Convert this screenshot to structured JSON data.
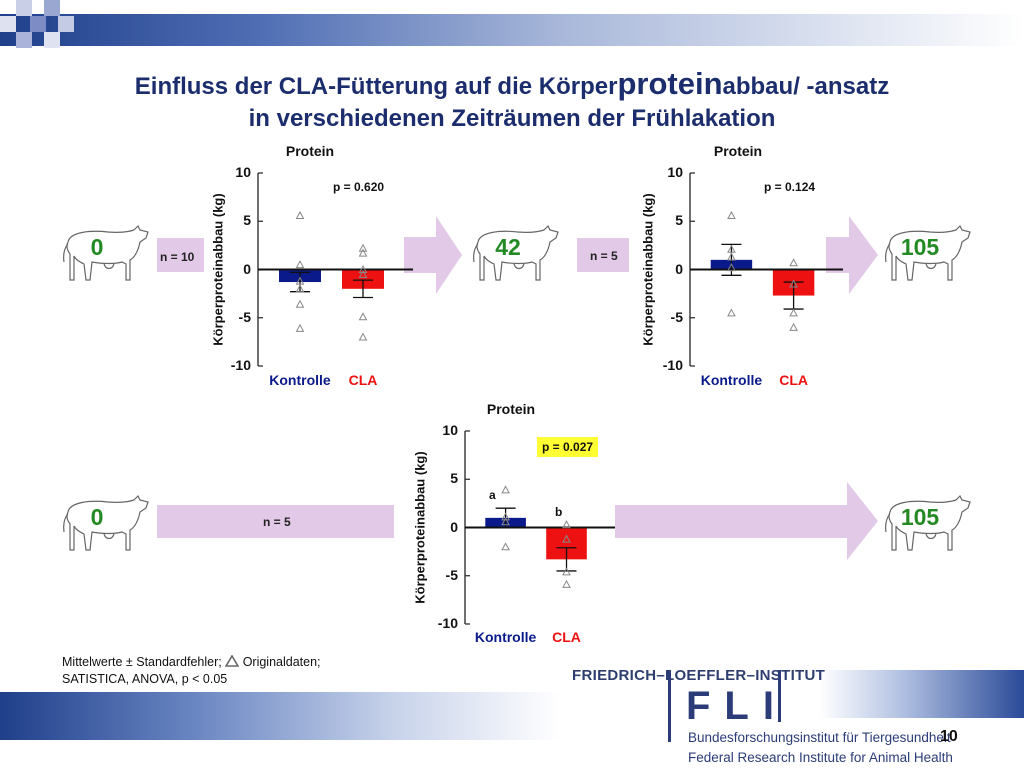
{
  "title": {
    "part1": "Einfluss der CLA-Fütterung auf die Körper",
    "part2": "protein",
    "part3": "abbau/ -ansatz",
    "line2": "in verschiedenen Zeiträumen der Frühlakation"
  },
  "cows": [
    {
      "day": "0"
    },
    {
      "day": "42"
    },
    {
      "day": "105"
    },
    {
      "day": "0"
    },
    {
      "day": "105"
    }
  ],
  "n_labels": [
    "n = 10",
    "n = 5",
    "n = 5"
  ],
  "colors": {
    "kontrolle": "#0a1a8a",
    "cla": "#ee1111",
    "arrow": "#e2c9e7",
    "title": "#1c2d6e",
    "cownum": "#238a23",
    "highlight": "#ffff33"
  },
  "chart_data": [
    {
      "type": "bar",
      "title": "Protein",
      "ylabel": "Körperproteinabbau (kg)",
      "ylim": [
        -10,
        10
      ],
      "yticks": [
        "10",
        "5",
        "0",
        "-5",
        "-10"
      ],
      "categories": [
        "Kontrolle",
        "CLA"
      ],
      "values": [
        -1.3,
        -2.0
      ],
      "errors": [
        1.0,
        0.9
      ],
      "raw_points": [
        [
          5.6,
          0.5,
          -1.2,
          -2.0,
          -3.6,
          -6.1
        ],
        [
          2.2,
          1.7,
          0.0,
          -0.5,
          -4.9,
          -7.0
        ]
      ],
      "pvalue": "p = 0.620",
      "highlight": false,
      "letters": [
        "",
        ""
      ]
    },
    {
      "type": "bar",
      "title": "Protein",
      "ylabel": "Körperproteinabbau (kg)",
      "ylim": [
        -10,
        10
      ],
      "yticks": [
        "10",
        "5",
        "0",
        "-5",
        "-10"
      ],
      "categories": [
        "Kontrolle",
        "CLA"
      ],
      "values": [
        1.0,
        -2.7
      ],
      "errors": [
        1.6,
        1.4
      ],
      "raw_points": [
        [
          5.6,
          2.1,
          1.3,
          0.2,
          -4.5
        ],
        [
          0.7,
          -1.5,
          -4.5,
          -6.0
        ]
      ],
      "pvalue": "p = 0.124",
      "highlight": false,
      "letters": [
        "",
        ""
      ]
    },
    {
      "type": "bar",
      "title": "Protein",
      "ylabel": "Körperproteinabbau (kg)",
      "ylim": [
        -10,
        10
      ],
      "yticks": [
        "10",
        "5",
        "0",
        "-5",
        "-10"
      ],
      "categories": [
        "Kontrolle",
        "CLA"
      ],
      "values": [
        1.0,
        -3.3
      ],
      "errors": [
        1.0,
        1.2
      ],
      "raw_points": [
        [
          3.9,
          1.1,
          0.6,
          -2.0
        ],
        [
          0.3,
          -1.2,
          -4.6,
          -5.9
        ]
      ],
      "pvalue": "p = 0.027",
      "highlight": true,
      "letters": [
        "a",
        "b"
      ]
    }
  ],
  "footnote": {
    "line1a": "Mittelwerte ± Standardfehler;",
    "line1b": "Originaldaten;",
    "line2": "SATISTICA, ANOVA, p < 0.05"
  },
  "logo": {
    "heading": "FRIEDRICH–LOEFFLER–INSTITUT",
    "mark": "FLI",
    "sub1": "Bundesforschungsinstitut für Tiergesundheit",
    "sub2": "Federal Research Institute for Animal Health"
  },
  "page_number": "10"
}
